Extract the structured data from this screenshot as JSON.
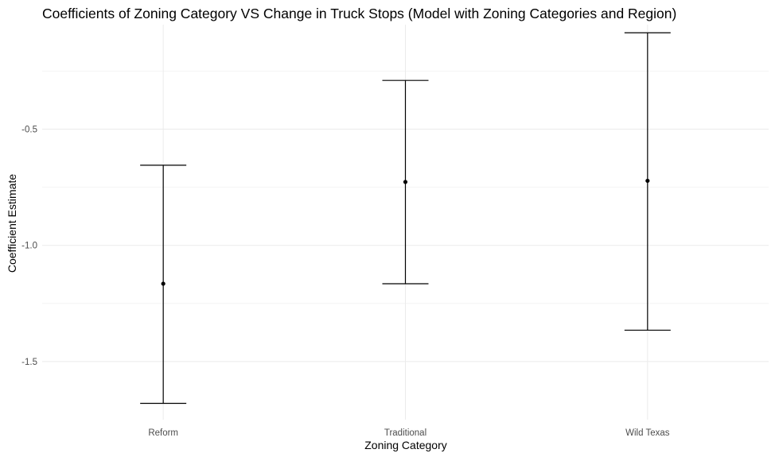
{
  "chart_data": {
    "type": "errorbar",
    "title": "Coefficients of Zoning Category VS Change in Truck Stops (Model with Zoning Categories and Region)",
    "xlabel": "Zoning Category",
    "ylabel": "Coefficient Estimate",
    "categories": [
      "Reform",
      "Traditional",
      "Wild Texas"
    ],
    "estimates": [
      -1.165,
      -0.727,
      -0.722
    ],
    "lower": [
      -1.68,
      -1.165,
      -1.365
    ],
    "upper": [
      -0.655,
      -0.29,
      -0.085
    ],
    "ylim": [
      -1.75,
      -0.05
    ],
    "yticks": [
      -1.5,
      -1.0,
      -0.5
    ],
    "ytick_labels": [
      "-1.5",
      "-1.0",
      "-0.5"
    ],
    "grid": true,
    "colors": {
      "errorbar": "#000000",
      "point": "#000000",
      "grid_major": "#ebebeb",
      "grid_minor": "#f2f2f2"
    }
  }
}
